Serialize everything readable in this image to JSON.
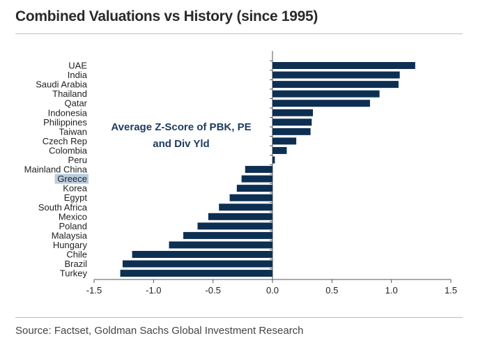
{
  "title": "Combined Valuations vs History (since 1995)",
  "source": "Source: Factset, Goldman Sachs Global Investment Research",
  "chart_data": {
    "type": "bar",
    "orientation": "horizontal",
    "categories": [
      "UAE",
      "India",
      "Saudi Arabia",
      "Thailand",
      "Qatar",
      "Indonesia",
      "Philippines",
      "Taiwan",
      "Czech Rep",
      "Colombia",
      "Peru",
      "Mainland China",
      "Greece",
      "Korea",
      "Egypt",
      "South Africa",
      "Mexico",
      "Poland",
      "Malaysia",
      "Hungary",
      "Chile",
      "Brazil",
      "Turkey"
    ],
    "values": [
      1.2,
      1.07,
      1.06,
      0.9,
      0.82,
      0.34,
      0.33,
      0.32,
      0.2,
      0.12,
      0.02,
      -0.23,
      -0.26,
      -0.3,
      -0.36,
      -0.45,
      -0.54,
      -0.63,
      -0.75,
      -0.87,
      -1.18,
      -1.26,
      -1.28
    ],
    "xlim": [
      -1.5,
      1.5
    ],
    "xticks": [
      "-1.5",
      "-1.0",
      "-0.5",
      "0.0",
      "0.5",
      "1.0",
      "1.5"
    ],
    "annotation": [
      "Average Z-Score of PBK, PE",
      "and Div Yld"
    ],
    "highlighted_category": "Greece",
    "bar_color": "#0d2f52",
    "highlight_color": "#b8cde0",
    "annotation_color": "#1d3b5e",
    "grid": false
  }
}
